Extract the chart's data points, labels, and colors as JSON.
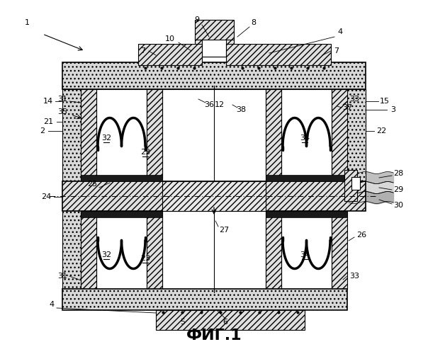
{
  "title": "ФИГ.1",
  "title_fontsize": 16,
  "background_color": "#ffffff",
  "fig_width": 6.04,
  "fig_height": 5.0,
  "dpi": 100
}
